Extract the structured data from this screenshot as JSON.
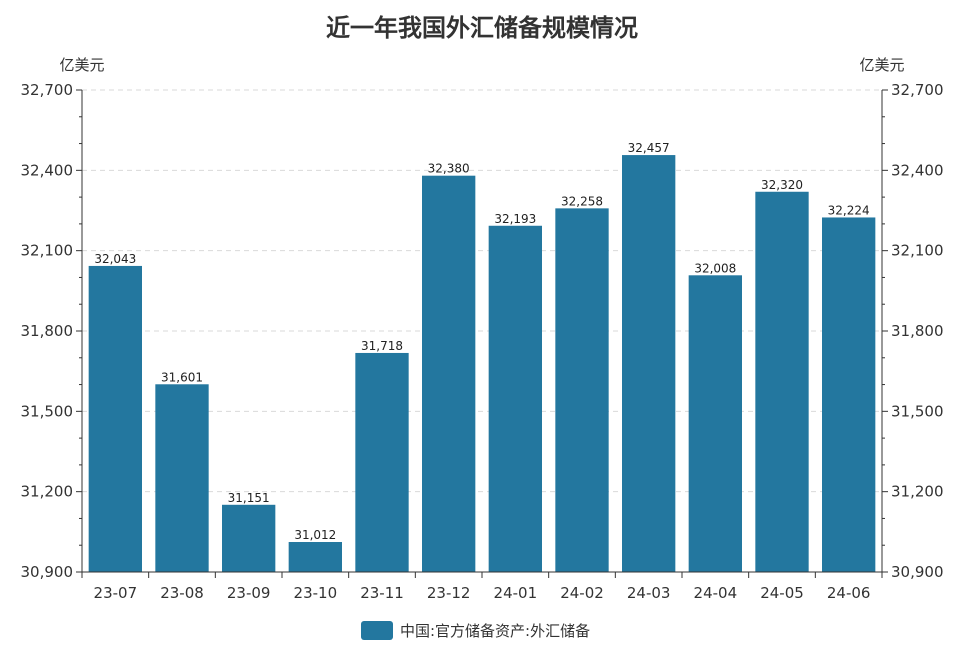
{
  "chart_data": {
    "type": "bar",
    "title": "近一年我国外汇储备规模情况",
    "ylabel_left": "亿美元",
    "ylabel_right": "亿美元",
    "ylim": [
      30900,
      32700
    ],
    "yticks": [
      30900,
      31200,
      31500,
      31800,
      32100,
      32400,
      32700
    ],
    "ytick_labels": [
      "30,900",
      "31,200",
      "31,500",
      "31,800",
      "32,100",
      "32,400",
      "32,700"
    ],
    "categories": [
      "23-07",
      "23-08",
      "23-09",
      "23-10",
      "23-11",
      "23-12",
      "24-01",
      "24-02",
      "24-03",
      "24-04",
      "24-05",
      "24-06"
    ],
    "series": [
      {
        "name": "中国:官方储备资产:外汇储备",
        "color": "#23779f",
        "values": [
          32043,
          31601,
          31151,
          31012,
          31718,
          32380,
          32193,
          32258,
          32457,
          32008,
          32320,
          32224
        ],
        "value_labels": [
          "32,043",
          "31,601",
          "31,151",
          "31,012",
          "31,718",
          "32,380",
          "32,193",
          "32,258",
          "32,457",
          "32,008",
          "32,320",
          "32,224"
        ]
      }
    ],
    "grid": true,
    "legend": "bottom-center"
  }
}
